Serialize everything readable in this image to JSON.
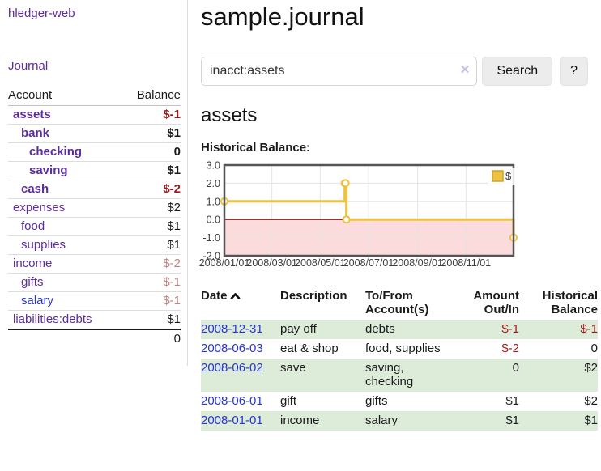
{
  "app": {
    "brand": "hledger-web",
    "nav_journal": "Journal"
  },
  "sidebar": {
    "headers": {
      "account": "Account",
      "balance": "Balance"
    },
    "accounts": [
      {
        "name": "assets",
        "level": 1,
        "bold": true,
        "balance": "$-1"
      },
      {
        "name": "bank",
        "level": 2,
        "bold": true,
        "balance": "$1"
      },
      {
        "name": "checking",
        "level": 3,
        "bold": true,
        "balance": "0"
      },
      {
        "name": "saving",
        "level": 3,
        "bold": true,
        "balance": "$1"
      },
      {
        "name": "cash",
        "level": 2,
        "bold": true,
        "balance": "$-2"
      },
      {
        "name": "expenses",
        "level": 1,
        "bold": false,
        "balance": "$2"
      },
      {
        "name": "food",
        "level": 2,
        "bold": false,
        "balance": "$1"
      },
      {
        "name": "supplies",
        "level": 2,
        "bold": false,
        "balance": "$1"
      },
      {
        "name": "income",
        "level": 1,
        "bold": false,
        "balance": "$-2"
      },
      {
        "name": "gifts",
        "level": 2,
        "bold": false,
        "balance": "$-1"
      },
      {
        "name": "salary",
        "level": 2,
        "bold": false,
        "balance": "$-1",
        "unvisited": true
      },
      {
        "name": "liabilities:debts",
        "level": 1,
        "bold": false,
        "balance": "$1"
      }
    ],
    "total": "0"
  },
  "header": {
    "title": "sample.journal"
  },
  "search": {
    "value": "inacct:assets",
    "clear_icon": "✕",
    "button": "Search",
    "help_button": "?"
  },
  "main": {
    "account_heading": "assets",
    "chart_label": "Historical Balance:"
  },
  "chart_data": {
    "type": "line",
    "step": true,
    "title": "Historical Balance",
    "legend": {
      "label": "$",
      "position": "top-right"
    },
    "series": [
      {
        "name": "$",
        "color": "#edc240",
        "points": [
          {
            "date": "2008-01-01",
            "day": 0,
            "value": 1
          },
          {
            "date": "2008-06-01",
            "day": 152,
            "value": 2
          },
          {
            "date": "2008-06-02",
            "day": 153,
            "value": 2
          },
          {
            "date": "2008-06-03",
            "day": 154,
            "value": 0
          },
          {
            "date": "2008-12-31",
            "day": 365,
            "value": -1
          }
        ]
      }
    ],
    "ylim": [
      -2,
      3
    ],
    "yticks": [
      {
        "value": 3,
        "label": "3.0"
      },
      {
        "value": 2,
        "label": "2.0"
      },
      {
        "value": 1,
        "label": "1.0"
      },
      {
        "value": 0,
        "label": "0.0"
      },
      {
        "value": -1,
        "label": "-1.0"
      },
      {
        "value": -2,
        "label": "-2.0"
      }
    ],
    "xticks": [
      {
        "day": 0,
        "label": "2008/01/01"
      },
      {
        "day": 60,
        "label": "2008/03/01"
      },
      {
        "day": 121,
        "label": "2008/05/01"
      },
      {
        "day": 182,
        "label": "2008/07/01"
      },
      {
        "day": 244,
        "label": "2008/09/01"
      },
      {
        "day": 305,
        "label": "2008/11/01"
      }
    ],
    "xmax_day": 365,
    "grid": true,
    "negative_fill": "#fbdbdb",
    "zero_line_color": "#8e1a1a",
    "border_color": "#545454",
    "grid_color": "#e4e4e4",
    "marker_fill": "#ffffff",
    "legend_border": "#c9a42e"
  },
  "register": {
    "headers": {
      "date": "Date",
      "description": "Description",
      "accounts": "To/From\nAccount(s)",
      "amount": "Amount\nOut/In",
      "balance": "Historical\nBalance"
    },
    "rows": [
      {
        "date": "2008-12-31",
        "description": "pay off",
        "accounts": "debts",
        "amount": "$-1",
        "balance": "$-1"
      },
      {
        "date": "2008-06-03",
        "description": "eat & shop",
        "accounts": "food, supplies",
        "amount": "$-2",
        "balance": "0"
      },
      {
        "date": "2008-06-02",
        "description": "save",
        "accounts": "saving,\nchecking",
        "amount": "0",
        "balance": "$2"
      },
      {
        "date": "2008-06-01",
        "description": "gift",
        "accounts": "gifts",
        "amount": "$1",
        "balance": "$2"
      },
      {
        "date": "2008-01-01",
        "description": "income",
        "accounts": "salary",
        "amount": "$1",
        "balance": "$1"
      }
    ]
  },
  "colors": {
    "link_purple": "#5b2d9e",
    "link_blue": "#2a35d4",
    "negative_strong": "#9b1b1b",
    "negative_soft": "#c08181",
    "row_green": "#ddebd9",
    "series_yellow": "#edc240"
  }
}
